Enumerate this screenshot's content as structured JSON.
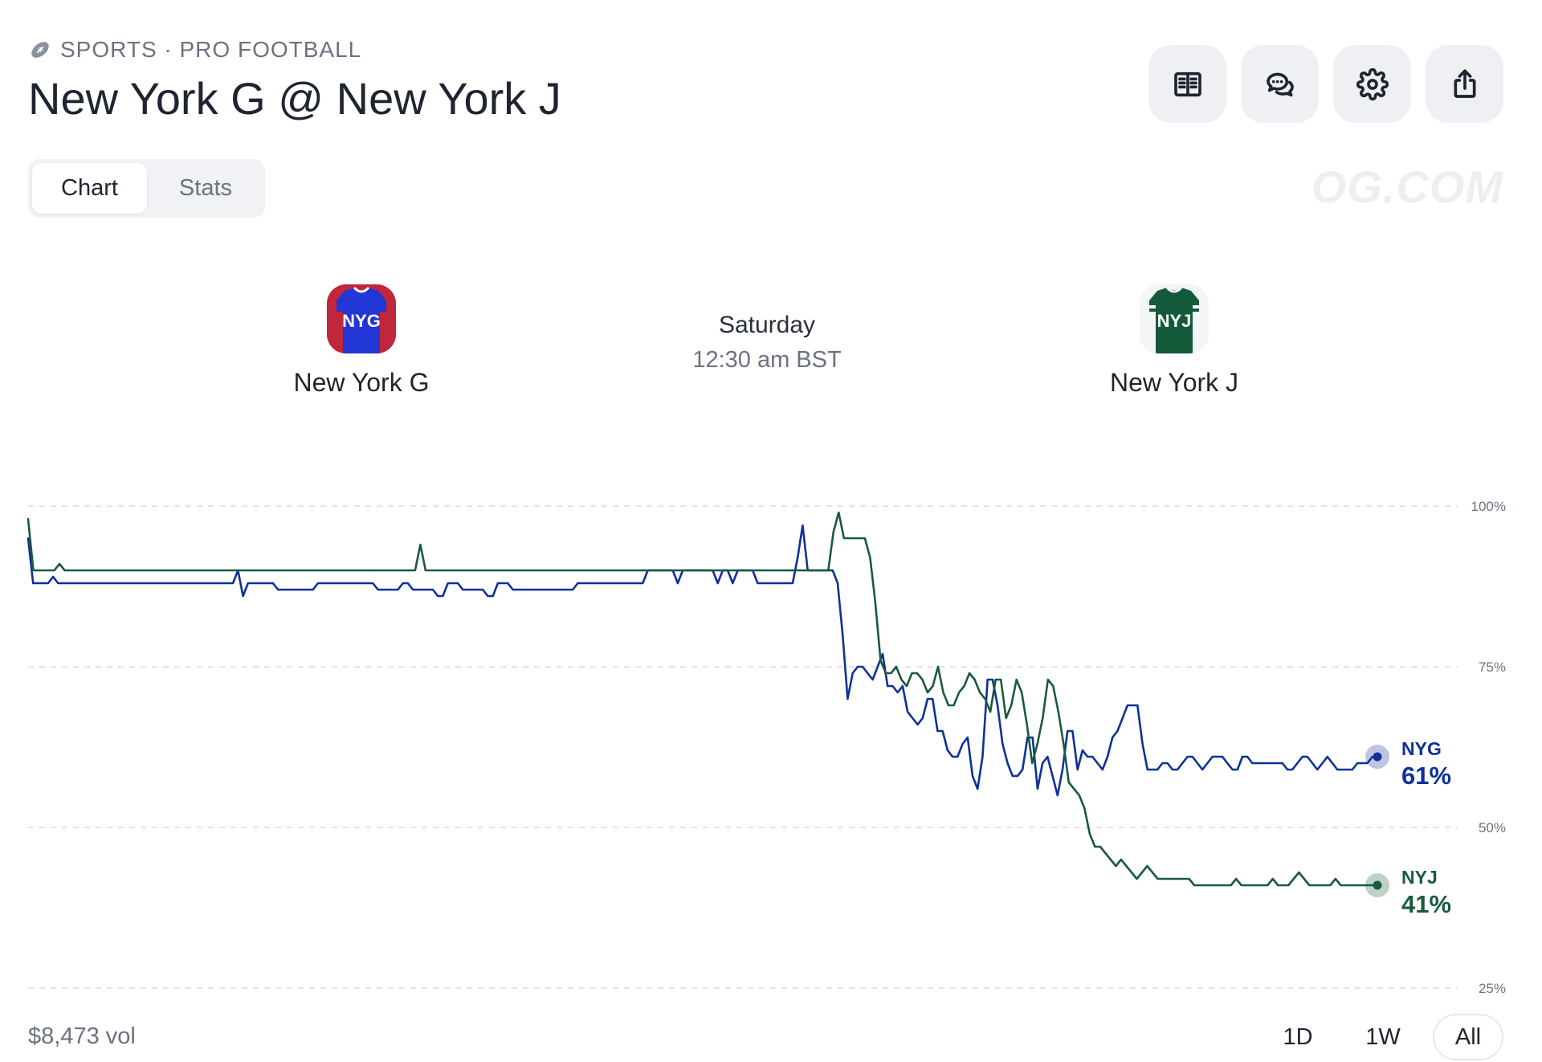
{
  "breadcrumb": {
    "text": "SPORTS · PRO FOOTBALL",
    "icon": "football-icon"
  },
  "title": "New York G @ New York J",
  "actions": [
    {
      "name": "rules-button",
      "icon": "book-open-icon"
    },
    {
      "name": "comments-button",
      "icon": "chat-bubbles-icon"
    },
    {
      "name": "settings-button",
      "icon": "gear-icon"
    },
    {
      "name": "share-button",
      "icon": "share-upload-icon"
    }
  ],
  "tabs": [
    {
      "label": "Chart",
      "active": true
    },
    {
      "label": "Stats",
      "active": false
    }
  ],
  "brand": "OG.COM",
  "teams": {
    "home": {
      "name": "New York G",
      "code": "NYG",
      "color": "#1f3fd1",
      "icon": "nyg-jersey-icon"
    },
    "away": {
      "name": "New York J",
      "code": "NYJ",
      "color": "#14573a",
      "icon": "nyj-jersey-icon"
    }
  },
  "schedule": {
    "day": "Saturday",
    "time": "12:30 am BST"
  },
  "chart_data": {
    "type": "line",
    "yticks": [
      "100%",
      "75%",
      "50%",
      "25%"
    ],
    "ylim": [
      25,
      100
    ],
    "grid": true,
    "series": [
      {
        "name": "NYG",
        "color": "#0e3199",
        "last_label": "61%",
        "values": [
          95,
          88,
          88,
          88,
          88,
          89,
          88,
          88,
          88,
          88,
          88,
          88,
          88,
          88,
          88,
          88,
          88,
          88,
          88,
          88,
          88,
          88,
          88,
          88,
          88,
          88,
          88,
          88,
          88,
          88,
          88,
          88,
          88,
          88,
          88,
          88,
          88,
          88,
          88,
          88,
          88,
          88,
          90,
          86,
          88,
          88,
          88,
          88,
          88,
          88,
          87,
          87,
          87,
          87,
          87,
          87,
          87,
          87,
          88,
          88,
          88,
          88,
          88,
          88,
          88,
          88,
          88,
          88,
          88,
          88,
          87,
          87,
          87,
          87,
          87,
          88,
          88,
          87,
          87,
          87,
          87,
          87,
          86,
          86,
          88,
          88,
          88,
          87,
          87,
          87,
          87,
          87,
          86,
          86,
          88,
          88,
          88,
          87,
          87,
          87,
          87,
          87,
          87,
          87,
          87,
          87,
          87,
          87,
          87,
          87,
          88,
          88,
          88,
          88,
          88,
          88,
          88,
          88,
          88,
          88,
          88,
          88,
          88,
          88,
          90,
          90,
          90,
          90,
          90,
          90,
          88,
          90,
          90,
          90,
          90,
          90,
          90,
          90,
          88,
          90,
          90,
          88,
          90,
          90,
          90,
          90,
          88,
          88,
          88,
          88,
          88,
          88,
          88,
          88,
          92,
          97,
          90,
          90,
          90,
          90,
          90,
          90,
          88,
          80,
          70,
          74,
          75,
          75,
          74,
          73,
          75,
          77,
          72,
          72,
          71,
          72,
          68,
          67,
          66,
          67,
          70,
          70,
          65,
          65,
          62,
          61,
          61,
          63,
          64,
          58,
          56,
          61,
          73,
          73,
          69,
          63,
          60,
          58,
          58,
          59,
          64,
          64,
          56,
          60,
          61,
          58,
          55,
          59,
          65,
          65,
          59,
          62,
          61,
          61,
          60,
          59,
          61,
          64,
          65,
          67,
          69,
          69,
          69,
          63,
          59,
          59,
          59,
          60,
          60,
          59,
          59,
          60,
          61,
          61,
          60,
          59,
          60,
          61,
          61,
          61,
          60,
          59,
          59,
          61,
          61,
          60,
          60,
          60,
          60,
          60,
          60,
          60,
          59,
          59,
          60,
          61,
          61,
          60,
          59,
          60,
          61,
          60,
          59,
          59,
          59,
          59,
          60,
          60,
          60,
          61,
          61
        ],
        "end_value": 61
      },
      {
        "name": "NYJ",
        "color": "#1a5a3c",
        "last_label": "41%",
        "values": [
          98,
          90,
          90,
          90,
          90,
          90,
          91,
          90,
          90,
          90,
          90,
          90,
          90,
          90,
          90,
          90,
          90,
          90,
          90,
          90,
          90,
          90,
          90,
          90,
          90,
          90,
          90,
          90,
          90,
          90,
          90,
          90,
          90,
          90,
          90,
          90,
          90,
          90,
          90,
          90,
          90,
          90,
          90,
          90,
          90,
          90,
          90,
          90,
          90,
          90,
          90,
          90,
          90,
          90,
          90,
          90,
          90,
          90,
          90,
          90,
          90,
          90,
          90,
          90,
          90,
          90,
          90,
          90,
          90,
          90,
          90,
          90,
          90,
          90,
          90,
          94,
          90,
          90,
          90,
          90,
          90,
          90,
          90,
          90,
          90,
          90,
          90,
          90,
          90,
          90,
          90,
          90,
          90,
          90,
          90,
          90,
          90,
          90,
          90,
          90,
          90,
          90,
          90,
          90,
          90,
          90,
          90,
          90,
          90,
          90,
          90,
          90,
          90,
          90,
          90,
          90,
          90,
          90,
          90,
          90,
          90,
          90,
          90,
          90,
          90,
          90,
          90,
          90,
          90,
          90,
          90,
          90,
          90,
          90,
          90,
          90,
          90,
          90,
          90,
          90,
          90,
          90,
          90,
          90,
          90,
          90,
          90,
          90,
          90,
          90,
          90,
          90,
          90,
          90,
          96,
          99,
          95,
          95,
          95,
          95,
          95,
          92,
          85,
          76,
          74,
          74,
          75,
          73,
          72,
          74,
          74,
          73,
          71,
          72,
          75,
          71,
          69,
          69,
          71,
          72,
          74,
          73,
          71,
          70,
          68,
          73,
          73,
          67,
          69,
          73,
          71,
          66,
          60,
          63,
          67,
          73,
          72,
          68,
          63,
          57,
          56,
          55,
          53,
          49,
          47,
          47,
          46,
          45,
          44,
          45,
          44,
          43,
          42,
          43,
          44,
          43,
          42,
          42,
          42,
          42,
          42,
          42,
          42,
          41,
          41,
          41,
          41,
          41,
          41,
          41,
          41,
          42,
          41,
          41,
          41,
          41,
          41,
          41,
          42,
          41,
          41,
          41,
          42,
          43,
          42,
          41,
          41,
          41,
          41,
          41,
          42,
          41,
          41,
          41,
          41,
          41,
          41,
          41,
          41
        ],
        "end_value": 41
      }
    ]
  },
  "volume": "$8,473 vol",
  "ranges": [
    {
      "label": "1D",
      "active": false
    },
    {
      "label": "1W",
      "active": false
    },
    {
      "label": "All",
      "active": true
    }
  ]
}
